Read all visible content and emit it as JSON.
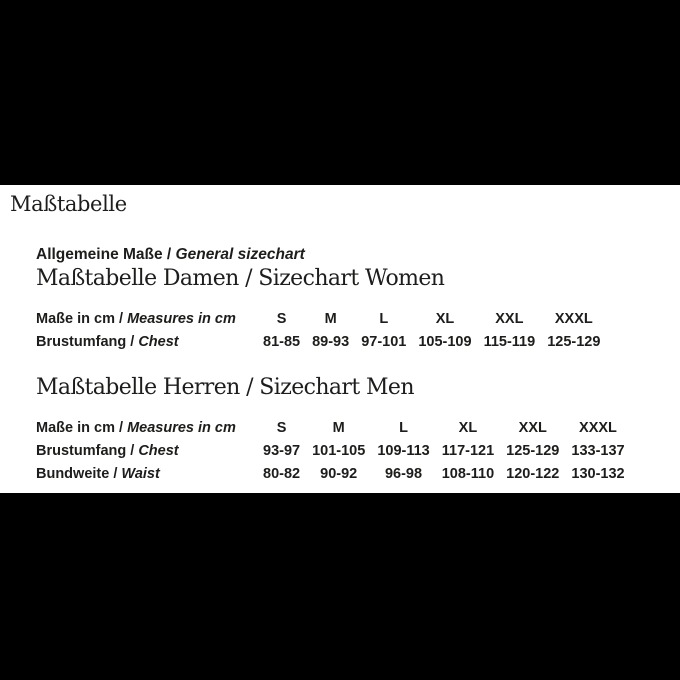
{
  "page": {
    "background_color": "#000000",
    "plate_color": "#ffffff",
    "text_color": "#1d1d1b",
    "title": "Maßtabelle"
  },
  "intro": {
    "label_de": "Allgemeine Maße / ",
    "label_en": "General sizechart"
  },
  "women": {
    "heading": "Maßtabelle Damen / Sizechart Women",
    "table": {
      "measure_label_de": "Maße in cm / ",
      "measure_label_en": "Measures in cm",
      "sizes": [
        "S",
        "M",
        "L",
        "XL",
        "XXL",
        "XXXL"
      ],
      "rows": [
        {
          "label_de": "Brustumfang / ",
          "label_en": "Chest",
          "values": [
            "81-85",
            "89-93",
            "97-101",
            "105-109",
            "115-119",
            "125-129"
          ]
        }
      ]
    }
  },
  "men": {
    "heading": "Maßtabelle Herren / Sizechart Men",
    "table": {
      "measure_label_de": "Maße in cm / ",
      "measure_label_en": "Measures in cm",
      "sizes": [
        "S",
        "M",
        "L",
        "XL",
        "XXL",
        "XXXL"
      ],
      "rows": [
        {
          "label_de": "Brustumfang / ",
          "label_en": "Chest",
          "values": [
            "93-97",
            "101-105",
            "109-113",
            "117-121",
            "125-129",
            "133-137"
          ]
        },
        {
          "label_de": "Bundweite / ",
          "label_en": "Waist",
          "values": [
            "80-82",
            "90-92",
            "96-98",
            "108-110",
            "120-122",
            "130-132"
          ]
        }
      ]
    }
  }
}
